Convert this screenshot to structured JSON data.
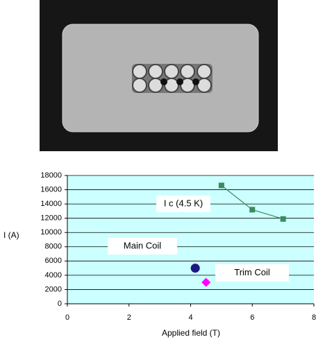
{
  "chart_data": {
    "type": "scatter",
    "xlabel": "Applied field (T)",
    "ylabel": "I (A)",
    "xlim": [
      0,
      8
    ],
    "xticks": [
      0,
      2,
      4,
      6,
      8
    ],
    "ylim": [
      0,
      18000
    ],
    "yticks": [
      0,
      2000,
      4000,
      6000,
      8000,
      10000,
      12000,
      14000,
      16000,
      18000
    ],
    "grid": true,
    "background": "#ccffff",
    "series": [
      {
        "name": "I c (4.5 K)",
        "color": "#3a8c5c",
        "marker": "square",
        "line": true,
        "x": [
          5,
          6,
          7
        ],
        "values": [
          16600,
          13200,
          11900
        ]
      },
      {
        "name": "Main Coil",
        "color": "#1a1a80",
        "marker": "circle",
        "line": false,
        "x": [
          4.15
        ],
        "values": [
          5000
        ]
      },
      {
        "name": "Trim Coil",
        "color": "#ff00ff",
        "marker": "diamond",
        "line": false,
        "x": [
          4.5
        ],
        "values": [
          3000
        ]
      }
    ]
  }
}
